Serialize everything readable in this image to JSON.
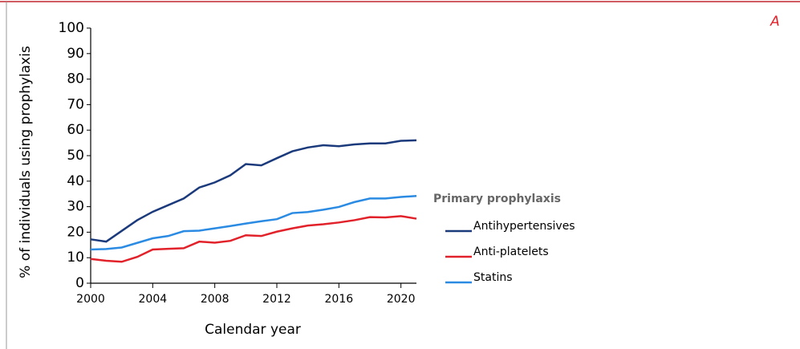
{
  "chart_data": {
    "type": "line",
    "panel_label": "A",
    "x_label": "Calendar year",
    "y_label": "% of individuals using prophylaxis",
    "legend_title": "Primary prophylaxis",
    "x": [
      2000,
      2001,
      2002,
      2003,
      2004,
      2005,
      2006,
      2007,
      2008,
      2009,
      2010,
      2011,
      2012,
      2013,
      2014,
      2015,
      2016,
      2017,
      2018,
      2019,
      2020,
      2021
    ],
    "series": [
      {
        "name": "Antihypertensives",
        "color": "#1b3a7c",
        "values": [
          17.2,
          16.3,
          20.5,
          24.7,
          28.0,
          30.6,
          33.2,
          37.5,
          39.5,
          42.3,
          46.7,
          46.2,
          49.0,
          51.7,
          53.2,
          54.1,
          53.7,
          54.4,
          54.8,
          54.8,
          55.8,
          56.0
        ]
      },
      {
        "name": "Anti-platelets",
        "color": "#e2222a",
        "values": [
          9.5,
          8.8,
          8.4,
          10.3,
          13.2,
          13.5,
          13.7,
          16.3,
          15.9,
          16.6,
          18.8,
          18.5,
          20.2,
          21.5,
          22.6,
          23.1,
          23.8,
          24.7,
          25.9,
          25.8,
          26.3,
          25.3
        ]
      },
      {
        "name": "Statins",
        "color": "#2b8be3",
        "values": [
          13.2,
          13.4,
          14.0,
          15.8,
          17.6,
          18.5,
          20.4,
          20.6,
          21.5,
          22.4,
          23.4,
          24.3,
          25.1,
          27.5,
          27.9,
          28.8,
          29.9,
          31.8,
          33.2,
          33.2,
          33.8,
          34.2
        ]
      }
    ],
    "xlim": [
      2000,
      2021
    ],
    "xticks": [
      2000,
      2004,
      2008,
      2012,
      2016,
      2020
    ],
    "ylim": [
      0,
      100
    ],
    "yticks": [
      0,
      10,
      20,
      30,
      40,
      50,
      60,
      70,
      80,
      90,
      100
    ]
  }
}
